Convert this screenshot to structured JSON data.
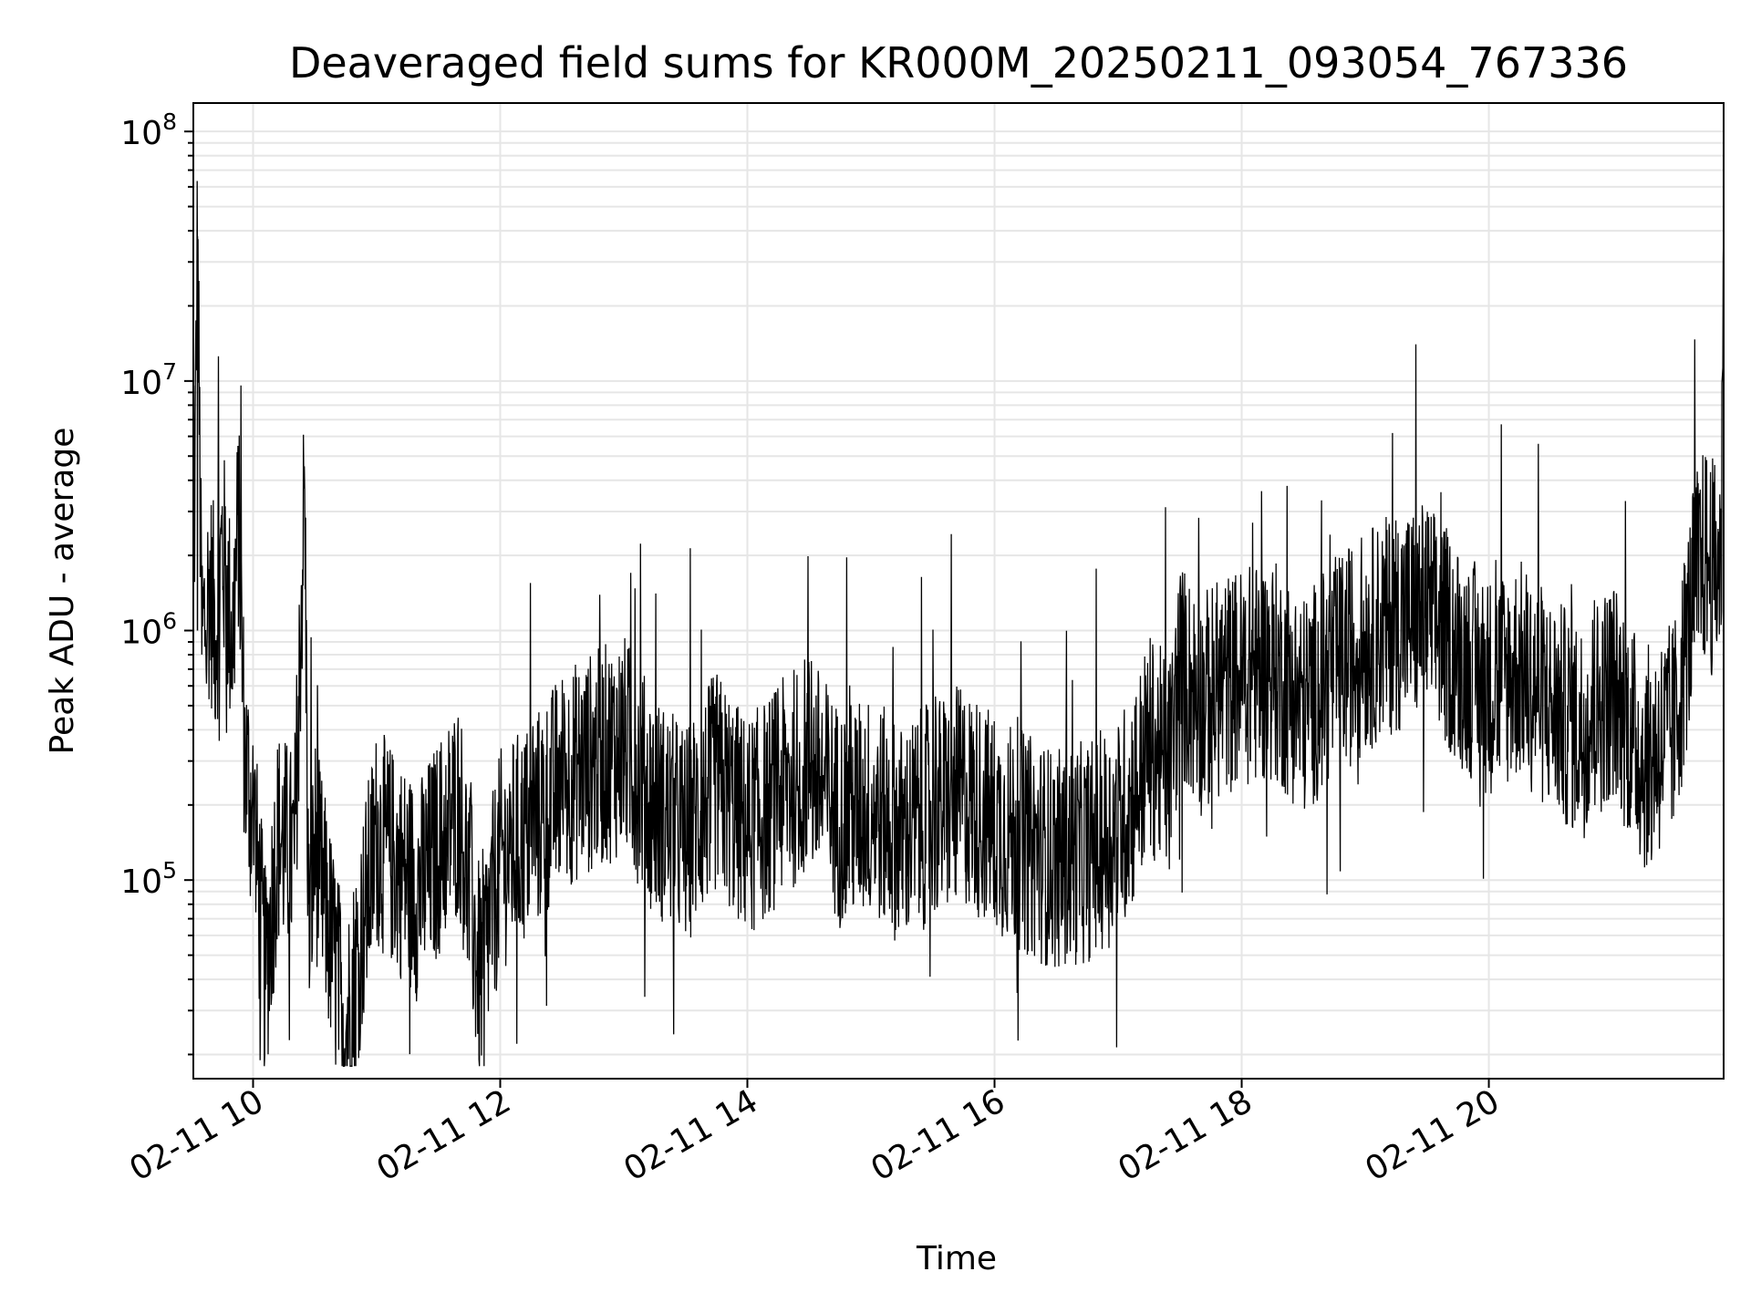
{
  "chart_data": {
    "type": "line",
    "title": "Deaveraged field sums for KR000M_20250211_093054_767336",
    "xlabel": "Time",
    "ylabel": "Peak ADU - average",
    "yscale": "log",
    "ylim": [
      16000,
      130000000
    ],
    "xlim": [
      "02-11 09:31",
      "02-11 21:54"
    ],
    "grid": true,
    "line_color": "#000000",
    "grid_color": "#e6e6e6",
    "x_ticks": [
      {
        "value": "02-11 10:00",
        "label": "02-11 10"
      },
      {
        "value": "02-11 12:00",
        "label": "02-11 12"
      },
      {
        "value": "02-11 14:00",
        "label": "02-11 14"
      },
      {
        "value": "02-11 16:00",
        "label": "02-11 16"
      },
      {
        "value": "02-11 18:00",
        "label": "02-11 18"
      },
      {
        "value": "02-11 20:00",
        "label": "02-11 20"
      }
    ],
    "y_ticks": [
      {
        "value": 100000,
        "base": "10",
        "exp": "5"
      },
      {
        "value": 1000000,
        "base": "10",
        "exp": "6"
      },
      {
        "value": 10000000,
        "base": "10",
        "exp": "7"
      },
      {
        "value": 100000000,
        "base": "10",
        "exp": "8"
      }
    ],
    "series": [
      {
        "x": [
          "02-11 09:31",
          "02-11 09:33",
          "02-11 09:35",
          "02-11 09:39",
          "02-11 09:42",
          "02-11 09:45",
          "02-11 09:50",
          "02-11 09:53",
          "02-11 09:56",
          "02-11 10:00",
          "02-11 10:06",
          "02-11 10:12",
          "02-11 10:20",
          "02-11 10:25",
          "02-11 10:27",
          "02-11 10:30",
          "02-11 10:45",
          "02-11 11:00",
          "02-11 11:20",
          "02-11 11:40",
          "02-11 11:50",
          "02-11 12:00",
          "02-11 12:15",
          "02-11 12:30",
          "02-11 12:45",
          "02-11 13:00",
          "02-11 13:15",
          "02-11 13:30",
          "02-11 13:45",
          "02-11 14:00",
          "02-11 14:15",
          "02-11 14:30",
          "02-11 14:45",
          "02-11 15:00",
          "02-11 15:15",
          "02-11 15:30",
          "02-11 15:45",
          "02-11 16:00",
          "02-11 16:15",
          "02-11 16:30",
          "02-11 16:45",
          "02-11 17:00",
          "02-11 17:10",
          "02-11 17:15",
          "02-11 17:25",
          "02-11 17:30",
          "02-11 17:40",
          "02-11 17:50",
          "02-11 18:00",
          "02-11 18:15",
          "02-11 18:30",
          "02-11 18:45",
          "02-11 19:00",
          "02-11 19:15",
          "02-11 19:30",
          "02-11 19:45",
          "02-11 20:00",
          "02-11 20:15",
          "02-11 20:30",
          "02-11 20:45",
          "02-11 21:00",
          "02-11 21:15",
          "02-11 21:30",
          "02-11 21:40",
          "02-11 21:45",
          "02-11 21:50",
          "02-11 21:53",
          "02-11 21:54"
        ],
        "y": [
          1000000,
          38000000,
          900000,
          1500000,
          1000000,
          2200000,
          900000,
          2800000,
          300000,
          180000,
          40000,
          150000,
          120000,
          3800000,
          60000,
          140000,
          25000,
          150000,
          90000,
          200000,
          40000,
          120000,
          160000,
          250000,
          300000,
          350000,
          200000,
          150000,
          250000,
          160000,
          220000,
          300000,
          180000,
          200000,
          150000,
          190000,
          220000,
          170000,
          140000,
          120000,
          130000,
          160000,
          250000,
          350000,
          280000,
          700000,
          500000,
          600000,
          650000,
          700000,
          500000,
          700000,
          900000,
          1100000,
          1200000,
          800000,
          600000,
          700000,
          500000,
          400000,
          600000,
          300000,
          400000,
          1500000,
          2000000,
          1700000,
          2200000,
          90000000
        ]
      }
    ]
  }
}
